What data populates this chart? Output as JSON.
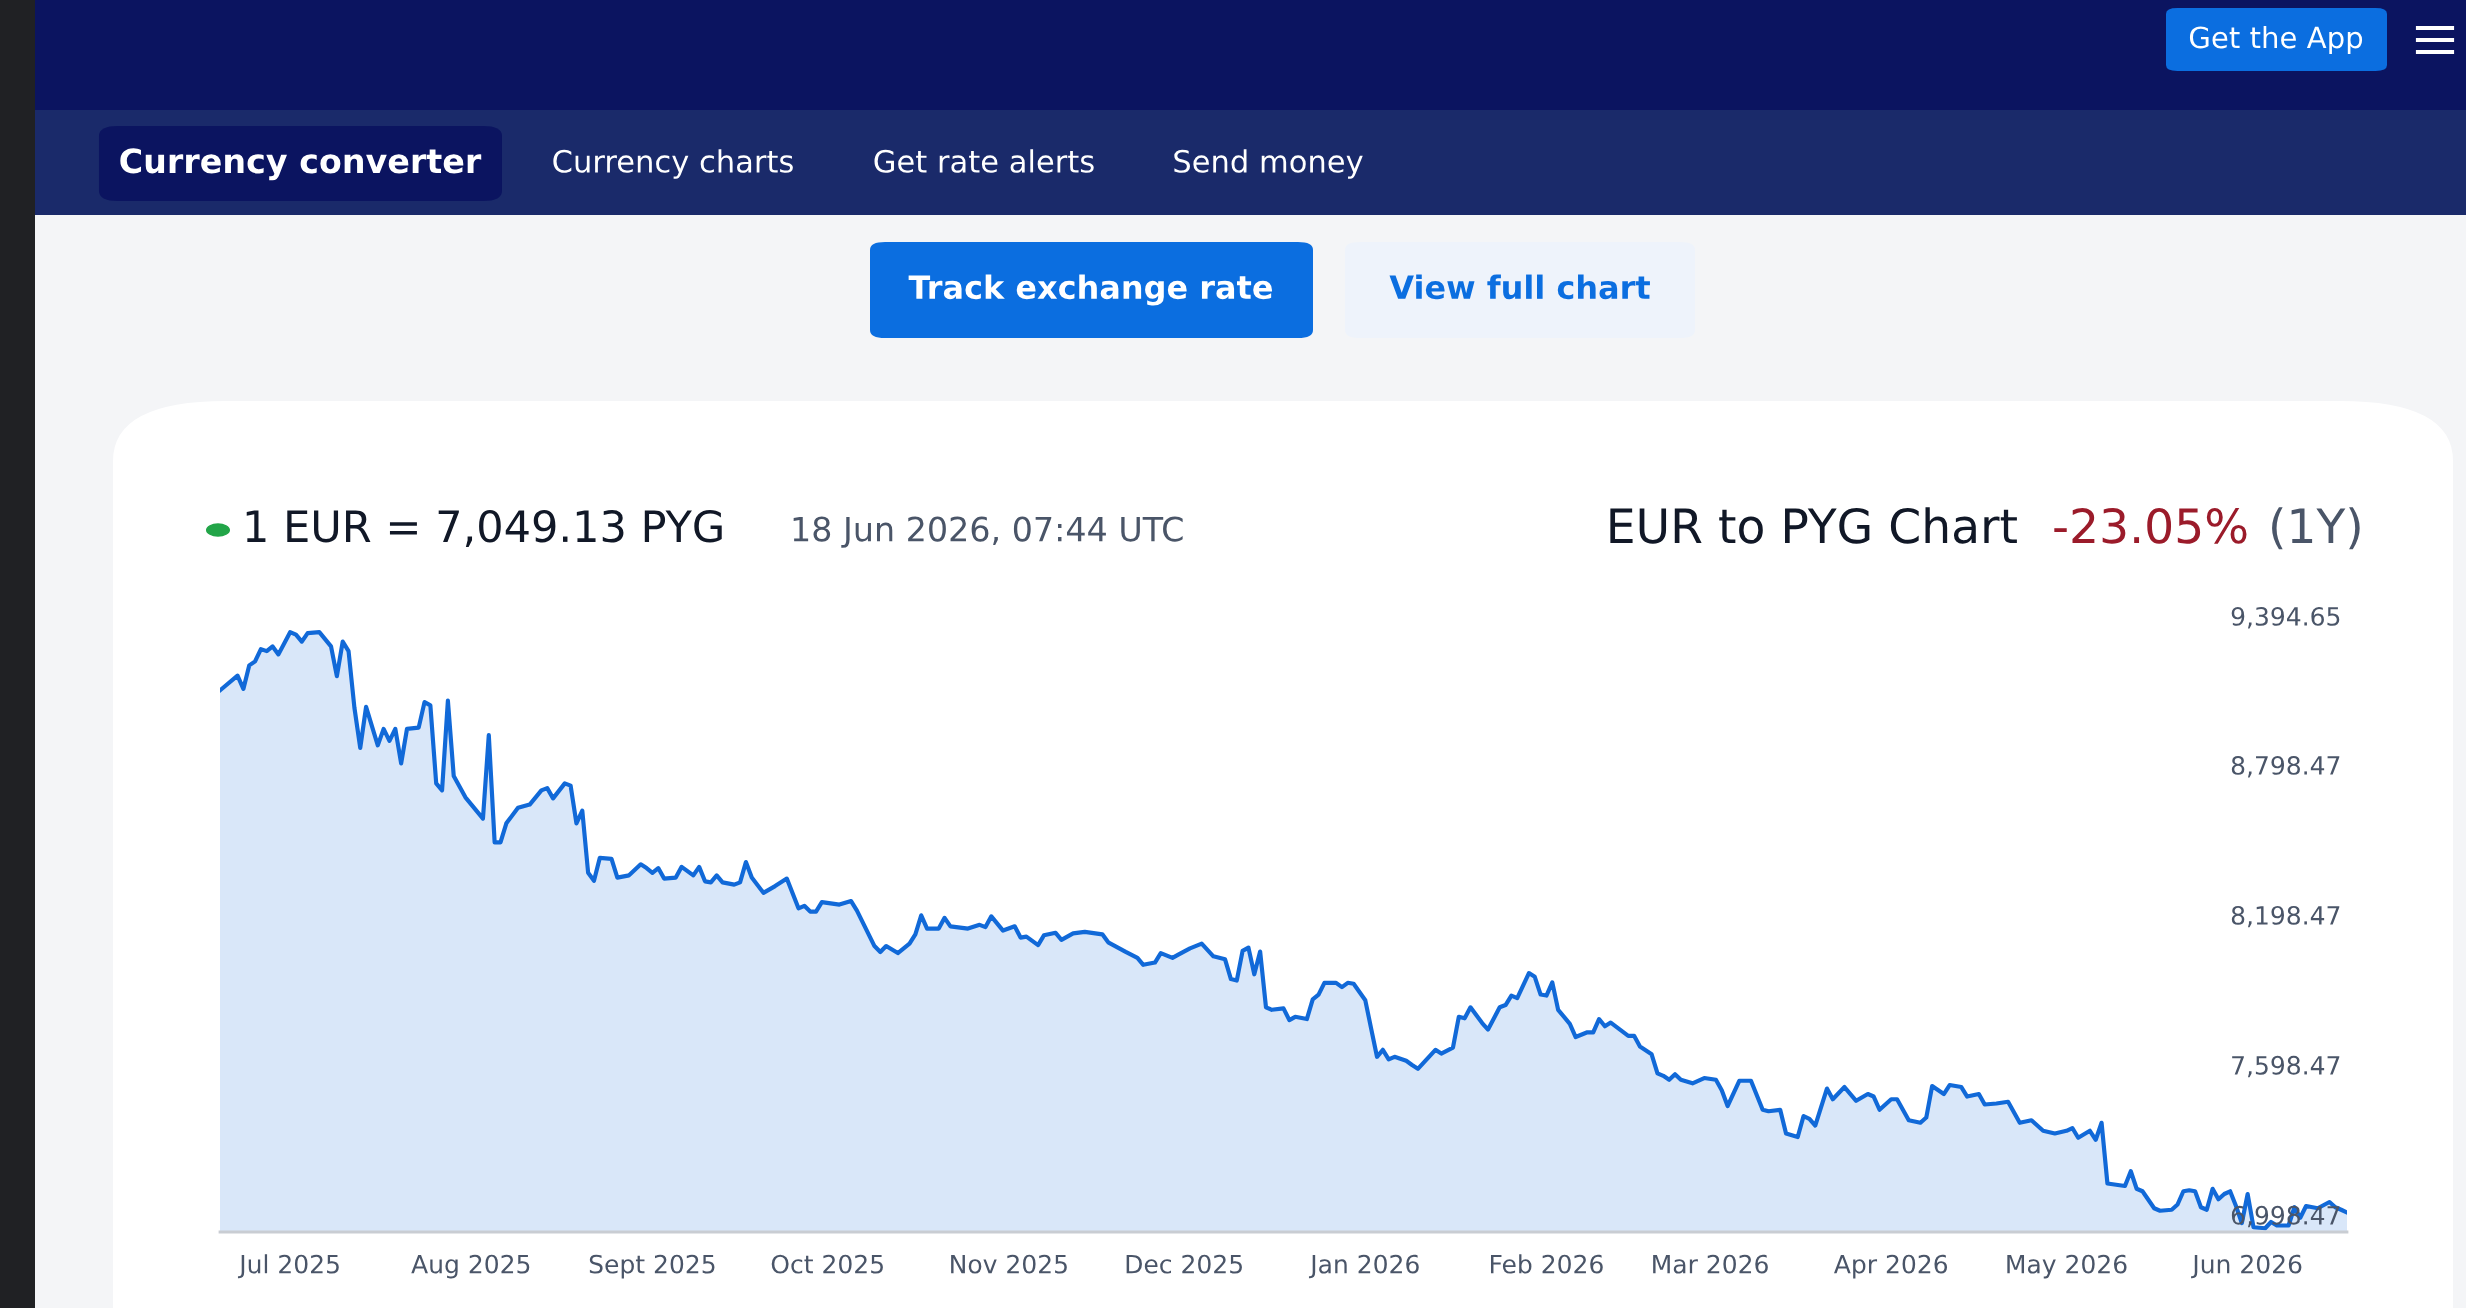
{
  "chart_data": {
    "type": "area",
    "title": "EUR to PYG Chart",
    "subtitle": "1 EUR = 7,049.13 PYG",
    "annotations": [
      "Get the App",
      "Currency converter",
      "Currency charts",
      "Get rate alerts",
      "Send money",
      "Track exchange rate",
      "View full chart",
      "18 Jun 2026, 07:44 UTC",
      "-23.05%",
      "(1Y)"
    ],
    "color": "#1169d8",
    "x": [
      "2025-06-19",
      "2025-06-22",
      "2025-06-23",
      "2025-06-24",
      "2025-06-25",
      "2025-06-26",
      "2025-06-27",
      "2025-06-28",
      "2025-06-29",
      "2025-07-01",
      "2025-07-02",
      "2025-07-03",
      "2025-07-04",
      "2025-07-06",
      "2025-07-08",
      "2025-07-09",
      "2025-07-10",
      "2025-07-11",
      "2025-07-12",
      "2025-07-13",
      "2025-07-14",
      "2025-07-16",
      "2025-07-17",
      "2025-07-18",
      "2025-07-19",
      "2025-07-20",
      "2025-07-21",
      "2025-07-23",
      "2025-07-24",
      "2025-07-25",
      "2025-07-26",
      "2025-07-27",
      "2025-07-28",
      "2025-07-29",
      "2025-07-31",
      "2025-08-03",
      "2025-08-04",
      "2025-08-05",
      "2025-08-06",
      "2025-08-07",
      "2025-08-09",
      "2025-08-11",
      "2025-08-13",
      "2025-08-14",
      "2025-08-15",
      "2025-08-17",
      "2025-08-18",
      "2025-08-19",
      "2025-08-20",
      "2025-08-21",
      "2025-08-22",
      "2025-08-23",
      "2025-08-25",
      "2025-08-26",
      "2025-08-28",
      "2025-08-30",
      "2025-08-31",
      "2025-09-01",
      "2025-09-02",
      "2025-09-03",
      "2025-09-05",
      "2025-09-06",
      "2025-09-08",
      "2025-09-09",
      "2025-09-10",
      "2025-09-11",
      "2025-09-12",
      "2025-09-13",
      "2025-09-15",
      "2025-09-16",
      "2025-09-17",
      "2025-09-18",
      "2025-09-20",
      "2025-09-22",
      "2025-09-24",
      "2025-09-26",
      "2025-09-27",
      "2025-09-28",
      "2025-09-29",
      "2025-09-30",
      "2025-10-03",
      "2025-10-05",
      "2025-10-06",
      "2025-10-09",
      "2025-10-10",
      "2025-10-11",
      "2025-10-13",
      "2025-10-15",
      "2025-10-16",
      "2025-10-17",
      "2025-10-18",
      "2025-10-20",
      "2025-10-21",
      "2025-10-22",
      "2025-10-25",
      "2025-10-27",
      "2025-10-28",
      "2025-10-29",
      "2025-10-31",
      "2025-11-02",
      "2025-11-03",
      "2025-11-04",
      "2025-11-06",
      "2025-11-07",
      "2025-11-09",
      "2025-11-10",
      "2025-11-12",
      "2025-11-14",
      "2025-11-17",
      "2025-11-18",
      "2025-11-21",
      "2025-11-23",
      "2025-11-24",
      "2025-11-26",
      "2025-11-27",
      "2025-11-29",
      "2025-11-30",
      "2025-12-02",
      "2025-12-04",
      "2025-12-06",
      "2025-12-08",
      "2025-12-09",
      "2025-12-10",
      "2025-12-11",
      "2025-12-12",
      "2025-12-13",
      "2025-12-14",
      "2025-12-15",
      "2025-12-16",
      "2025-12-18",
      "2025-12-19",
      "2025-12-20",
      "2025-12-22",
      "2025-12-23",
      "2025-12-24",
      "2025-12-25",
      "2025-12-27",
      "2025-12-28",
      "2025-12-29",
      "2025-12-30",
      "2026-01-01",
      "2026-01-02",
      "2026-01-03",
      "2026-01-04",
      "2026-01-05",
      "2026-01-06",
      "2026-01-08",
      "2026-01-09",
      "2026-01-10",
      "2026-01-13",
      "2026-01-14",
      "2026-01-16",
      "2026-01-17",
      "2026-01-18",
      "2026-01-19",
      "2026-01-21",
      "2026-01-22",
      "2026-01-24",
      "2026-01-25",
      "2026-01-26",
      "2026-01-27",
      "2026-01-29",
      "2026-01-30",
      "2026-01-31",
      "2026-02-01",
      "2026-02-02",
      "2026-02-03",
      "2026-02-05",
      "2026-02-06",
      "2026-02-08",
      "2026-02-09",
      "2026-02-10",
      "2026-02-11",
      "2026-02-12",
      "2026-02-15",
      "2026-02-16",
      "2026-02-17",
      "2026-02-19",
      "2026-02-20",
      "2026-02-21",
      "2026-02-22",
      "2026-02-23",
      "2026-02-24",
      "2026-02-26",
      "2026-02-28",
      "2026-03-02",
      "2026-03-03",
      "2026-03-04",
      "2026-03-06",
      "2026-03-08",
      "2026-03-10",
      "2026-03-11",
      "2026-03-13",
      "2026-03-14",
      "2026-03-16",
      "2026-03-17",
      "2026-03-18",
      "2026-03-19",
      "2026-03-21",
      "2026-03-22",
      "2026-03-24",
      "2026-03-26",
      "2026-03-28",
      "2026-03-29",
      "2026-03-30",
      "2026-04-01",
      "2026-04-02",
      "2026-04-04",
      "2026-04-06",
      "2026-04-07",
      "2026-04-08",
      "2026-04-10",
      "2026-04-11",
      "2026-04-13",
      "2026-04-14",
      "2026-04-16",
      "2026-04-17",
      "2026-04-19",
      "2026-04-21",
      "2026-04-23",
      "2026-04-25",
      "2026-04-27",
      "2026-04-29",
      "2026-05-01",
      "2026-05-02",
      "2026-05-03",
      "2026-05-05",
      "2026-05-06",
      "2026-05-07",
      "2026-05-08",
      "2026-05-11",
      "2026-05-12",
      "2026-05-13",
      "2026-05-14",
      "2026-05-16",
      "2026-05-17",
      "2026-05-19",
      "2026-05-20",
      "2026-05-21",
      "2026-05-22",
      "2026-05-23",
      "2026-05-24",
      "2026-05-25",
      "2026-05-26",
      "2026-05-27",
      "2026-05-28",
      "2026-05-29",
      "2026-05-30",
      "2026-05-31",
      "2026-06-01",
      "2026-06-02",
      "2026-06-04",
      "2026-06-05",
      "2026-06-06",
      "2026-06-08",
      "2026-06-09",
      "2026-06-10",
      "2026-06-11",
      "2026-06-13",
      "2026-06-15",
      "2026-06-16",
      "2026-06-17",
      "2026-06-18"
    ],
    "values": [
      9097,
      9156,
      9103,
      9197,
      9213,
      9262,
      9254,
      9273,
      9241,
      9330,
      9320,
      9292,
      9326,
      9330,
      9273,
      9154,
      9292,
      9254,
      9028,
      8867,
      9031,
      8877,
      8943,
      8895,
      8943,
      8805,
      8943,
      8948,
      9050,
      9037,
      8725,
      8697,
      9056,
      8754,
      8669,
      8584,
      8918,
      8489,
      8489,
      8565,
      8627,
      8640,
      8697,
      8706,
      8665,
      8725,
      8716,
      8565,
      8616,
      8367,
      8335,
      8427,
      8423,
      8348,
      8357,
      8401,
      8386,
      8367,
      8386,
      8344,
      8348,
      8391,
      8357,
      8391,
      8333,
      8329,
      8357,
      8329,
      8320,
      8329,
      8410,
      8348,
      8287,
      8314,
      8344,
      8225,
      8235,
      8212,
      8212,
      8250,
      8240,
      8254,
      8216,
      8074,
      8050,
      8074,
      8046,
      8084,
      8121,
      8197,
      8144,
      8144,
      8187,
      8153,
      8144,
      8159,
      8150,
      8193,
      8136,
      8153,
      8108,
      8112,
      8078,
      8117,
      8127,
      8099,
      8125,
      8131,
      8121,
      8089,
      8051,
      8027,
      7999,
      8008,
      8046,
      8027,
      8040,
      8065,
      8084,
      8033,
      8021,
      7942,
      7936,
      8055,
      8068,
      7961,
      8052,
      7829,
      7819,
      7825,
      7778,
      7791,
      7782,
      7861,
      7880,
      7927,
      7927,
      7910,
      7927,
      7923,
      7857,
      7744,
      7631,
      7659,
      7621,
      7631,
      7615,
      7598,
      7583,
      7659,
      7644,
      7668,
      7791,
      7785,
      7829,
      7766,
      7740,
      7829,
      7838,
      7876,
      7866,
      7966,
      7951,
      7880,
      7876,
      7929,
      7819,
      7763,
      7710,
      7729,
      7729,
      7782,
      7753,
      7768,
      7715,
      7715,
      7672,
      7641,
      7565,
      7555,
      7539,
      7561,
      7539,
      7525,
      7546,
      7539,
      7497,
      7434,
      7535,
      7535,
      7419,
      7413,
      7419,
      7324,
      7310,
      7394,
      7383,
      7356,
      7504,
      7461,
      7510,
      7455,
      7482,
      7472,
      7419,
      7461,
      7461,
      7377,
      7367,
      7388,
      7514,
      7482,
      7518,
      7510,
      7472,
      7482,
      7440,
      7444,
      7451,
      7367,
      7377,
      7335,
      7324,
      7335,
      7346,
      7307,
      7335,
      7299,
      7367,
      7124,
      7114,
      7173,
      7103,
      7093,
      7025,
      7015,
      7019,
      7040,
      7093,
      7097,
      7093,
      7029,
      7019,
      7103,
      7061,
      7082,
      7093,
      7034,
      6966,
      7082,
      6949,
      6945,
      6970,
      6956,
      6956,
      7029,
      6987,
      7034,
      7025,
      7050,
      7029,
      7019,
      7008
    ],
    "xlim": [
      "2025-06-19",
      "2026-06-18"
    ],
    "xticks": [
      {
        "value": "2025-07-01",
        "label": "Jul 2025"
      },
      {
        "value": "2025-08-01",
        "label": "Aug 2025"
      },
      {
        "value": "2025-09-01",
        "label": "Sept 2025"
      },
      {
        "value": "2025-10-01",
        "label": "Oct 2025"
      },
      {
        "value": "2025-11-01",
        "label": "Nov 2025"
      },
      {
        "value": "2025-12-01",
        "label": "Dec 2025"
      },
      {
        "value": "2026-01-01",
        "label": "Jan 2026"
      },
      {
        "value": "2026-02-01",
        "label": "Feb 2026"
      },
      {
        "value": "2026-03-01",
        "label": "Mar 2026"
      },
      {
        "value": "2026-04-01",
        "label": "Apr 2026"
      },
      {
        "value": "2026-05-01",
        "label": "May 2026"
      },
      {
        "value": "2026-06-01",
        "label": "Jun 2026"
      }
    ],
    "ylim": [
      6930,
      9394.65
    ],
    "yticks": [
      {
        "value": 6998.47,
        "label": "6,998.47"
      },
      {
        "value": 7598.47,
        "label": "7,598.47"
      },
      {
        "value": 8198.47,
        "label": "8,198.47"
      },
      {
        "value": 8798.47,
        "label": "8,798.47"
      },
      {
        "value": 9394.65,
        "label": "9,394.65"
      }
    ],
    "grid": false,
    "legend": false
  }
}
